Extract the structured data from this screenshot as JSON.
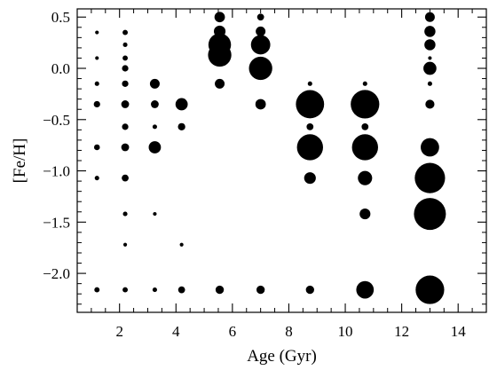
{
  "chart_data": {
    "type": "scatter",
    "xlabel": "Age (Gyr)",
    "ylabel": "[Fe/H]",
    "xlim": [
      0.5,
      15.0
    ],
    "ylim": [
      -2.38,
      0.58
    ],
    "x_major_ticks": [
      2,
      4,
      6,
      8,
      10,
      12,
      14
    ],
    "y_major_ticks": [
      0.5,
      0.0,
      -0.5,
      -1.0,
      -1.5,
      -2.0
    ],
    "x_tick_labels": [
      "2",
      "4",
      "6",
      "8",
      "10",
      "12",
      "14"
    ],
    "y_tick_labels": [
      "0.5",
      "0.0",
      "-0.5",
      "-1.0",
      "-1.5",
      "-2.0"
    ],
    "x_minor_step": 0.5,
    "y_minor_step": 0.1,
    "marker": "filled circle, size proportional to weight",
    "point_color": "#000000",
    "grid": false,
    "points": [
      {
        "x": 1.2,
        "y": 0.35,
        "w": 0.02
      },
      {
        "x": 1.2,
        "y": 0.1,
        "w": 0.02
      },
      {
        "x": 1.2,
        "y": -0.15,
        "w": 0.03
      },
      {
        "x": 1.2,
        "y": -0.35,
        "w": 0.06
      },
      {
        "x": 1.2,
        "y": -0.77,
        "w": 0.05
      },
      {
        "x": 1.2,
        "y": -1.07,
        "w": 0.03
      },
      {
        "x": 1.2,
        "y": -2.16,
        "w": 0.04
      },
      {
        "x": 2.2,
        "y": 0.35,
        "w": 0.04
      },
      {
        "x": 2.2,
        "y": 0.23,
        "w": 0.03
      },
      {
        "x": 2.2,
        "y": 0.1,
        "w": 0.04
      },
      {
        "x": 2.2,
        "y": 0.0,
        "w": 0.06
      },
      {
        "x": 2.2,
        "y": -0.15,
        "w": 0.06
      },
      {
        "x": 2.2,
        "y": -0.35,
        "w": 0.09
      },
      {
        "x": 2.2,
        "y": -0.57,
        "w": 0.06
      },
      {
        "x": 2.2,
        "y": -0.77,
        "w": 0.09
      },
      {
        "x": 2.2,
        "y": -1.07,
        "w": 0.07
      },
      {
        "x": 2.2,
        "y": -1.42,
        "w": 0.03
      },
      {
        "x": 2.2,
        "y": -1.72,
        "w": 0.02
      },
      {
        "x": 2.2,
        "y": -2.16,
        "w": 0.04
      },
      {
        "x": 3.25,
        "y": -0.15,
        "w": 0.14
      },
      {
        "x": 3.25,
        "y": -0.35,
        "w": 0.09
      },
      {
        "x": 3.25,
        "y": -0.57,
        "w": 0.03
      },
      {
        "x": 3.25,
        "y": -0.77,
        "w": 0.22
      },
      {
        "x": 3.25,
        "y": -1.42,
        "w": 0.02
      },
      {
        "x": 3.25,
        "y": -2.16,
        "w": 0.03
      },
      {
        "x": 4.2,
        "y": -0.35,
        "w": 0.22
      },
      {
        "x": 4.2,
        "y": -0.57,
        "w": 0.08
      },
      {
        "x": 4.2,
        "y": -1.72,
        "w": 0.02
      },
      {
        "x": 4.2,
        "y": -2.16,
        "w": 0.07
      },
      {
        "x": 5.55,
        "y": 0.5,
        "w": 0.16
      },
      {
        "x": 5.55,
        "y": 0.36,
        "w": 0.2
      },
      {
        "x": 5.55,
        "y": 0.23,
        "w": 0.75
      },
      {
        "x": 5.55,
        "y": 0.13,
        "w": 0.8
      },
      {
        "x": 5.55,
        "y": -0.15,
        "w": 0.14
      },
      {
        "x": 5.55,
        "y": -2.16,
        "w": 0.1
      },
      {
        "x": 7.0,
        "y": 0.5,
        "w": 0.07
      },
      {
        "x": 7.0,
        "y": 0.36,
        "w": 0.14
      },
      {
        "x": 7.0,
        "y": 0.23,
        "w": 0.55
      },
      {
        "x": 7.0,
        "y": 0.0,
        "w": 0.8
      },
      {
        "x": 7.0,
        "y": -0.35,
        "w": 0.16
      },
      {
        "x": 7.0,
        "y": -2.16,
        "w": 0.1
      },
      {
        "x": 8.75,
        "y": -0.15,
        "w": 0.03
      },
      {
        "x": 8.75,
        "y": -0.35,
        "w": 1.17
      },
      {
        "x": 8.75,
        "y": -0.57,
        "w": 0.07
      },
      {
        "x": 8.75,
        "y": -0.77,
        "w": 1.0
      },
      {
        "x": 8.75,
        "y": -1.07,
        "w": 0.2
      },
      {
        "x": 8.75,
        "y": -2.16,
        "w": 0.1
      },
      {
        "x": 10.7,
        "y": -0.15,
        "w": 0.03
      },
      {
        "x": 10.7,
        "y": -0.35,
        "w": 1.2
      },
      {
        "x": 10.7,
        "y": -0.57,
        "w": 0.07
      },
      {
        "x": 10.7,
        "y": -0.77,
        "w": 1.0
      },
      {
        "x": 10.7,
        "y": -1.07,
        "w": 0.3
      },
      {
        "x": 10.7,
        "y": -1.42,
        "w": 0.17
      },
      {
        "x": 10.7,
        "y": -2.16,
        "w": 0.45
      },
      {
        "x": 13.0,
        "y": 0.5,
        "w": 0.14
      },
      {
        "x": 13.0,
        "y": 0.36,
        "w": 0.18
      },
      {
        "x": 13.0,
        "y": 0.23,
        "w": 0.18
      },
      {
        "x": 13.0,
        "y": 0.1,
        "w": 0.02
      },
      {
        "x": 13.0,
        "y": 0.0,
        "w": 0.25
      },
      {
        "x": 13.0,
        "y": -0.15,
        "w": 0.03
      },
      {
        "x": 13.0,
        "y": -0.35,
        "w": 0.12
      },
      {
        "x": 13.0,
        "y": -0.77,
        "w": 0.5
      },
      {
        "x": 13.0,
        "y": -1.07,
        "w": 1.35
      },
      {
        "x": 13.0,
        "y": -1.42,
        "w": 1.5
      },
      {
        "x": 13.0,
        "y": -2.16,
        "w": 1.2
      }
    ]
  }
}
